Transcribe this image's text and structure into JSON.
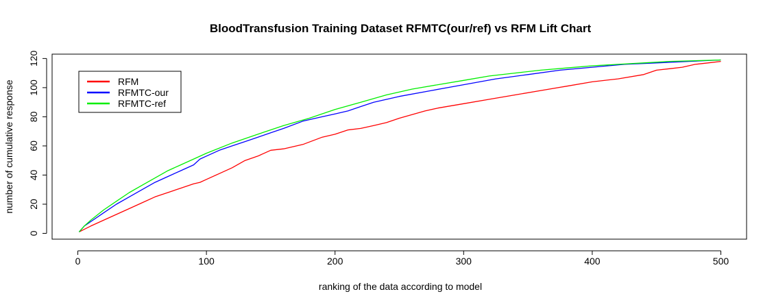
{
  "chart_data": {
    "type": "line",
    "title": "BloodTransfusion Training Dataset RFMTC(our/ref) vs RFM Lift Chart",
    "xlabel": "ranking of the data according to model",
    "ylabel": "number of cumulative response",
    "xlim": [
      -20,
      520
    ],
    "ylim": [
      -4,
      123
    ],
    "xticks": [
      0,
      100,
      200,
      300,
      400,
      500
    ],
    "yticks": [
      0,
      20,
      40,
      60,
      80,
      100,
      120
    ],
    "grid": false,
    "legend": "top-left",
    "series": [
      {
        "name": "RFM",
        "color": "#ff0000",
        "x": [
          1,
          10,
          20,
          30,
          40,
          50,
          60,
          70,
          80,
          90,
          95,
          100,
          110,
          120,
          130,
          140,
          150,
          160,
          175,
          190,
          200,
          210,
          220,
          230,
          240,
          250,
          270,
          280,
          300,
          320,
          340,
          360,
          380,
          400,
          420,
          440,
          450,
          460,
          470,
          480,
          490,
          500
        ],
        "y": [
          1,
          5,
          9,
          13,
          17,
          21,
          25,
          28,
          31,
          34,
          35,
          37,
          41,
          45,
          50,
          53,
          57,
          58,
          61,
          66,
          68,
          71,
          72,
          74,
          76,
          79,
          84,
          86,
          89,
          92,
          95,
          98,
          101,
          104,
          106,
          109,
          112,
          113,
          114,
          116,
          117,
          118
        ]
      },
      {
        "name": "RFMTC-our",
        "color": "#0000ff",
        "x": [
          1,
          5,
          10,
          20,
          30,
          40,
          50,
          60,
          70,
          80,
          90,
          95,
          100,
          110,
          120,
          130,
          140,
          150,
          160,
          175,
          190,
          200,
          210,
          220,
          230,
          250,
          275,
          300,
          325,
          350,
          375,
          400,
          425,
          450,
          475,
          500
        ],
        "y": [
          1,
          5,
          8,
          14,
          20,
          25,
          30,
          35,
          39,
          43,
          47,
          51,
          53,
          57,
          60,
          63,
          66,
          69,
          72,
          77,
          80,
          82,
          84,
          87,
          90,
          94,
          98,
          102,
          106,
          109,
          112,
          114,
          116,
          117,
          118,
          119
        ]
      },
      {
        "name": "RFMTC-ref",
        "color": "#00ee00",
        "x": [
          1,
          5,
          10,
          20,
          30,
          40,
          50,
          60,
          70,
          80,
          90,
          100,
          120,
          140,
          160,
          180,
          200,
          220,
          240,
          260,
          280,
          300,
          320,
          340,
          360,
          380,
          400,
          420,
          440,
          460,
          480,
          500
        ],
        "y": [
          1,
          5,
          9,
          16,
          22,
          28,
          33,
          38,
          43,
          47,
          51,
          55,
          62,
          68,
          74,
          79,
          85,
          90,
          95,
          99,
          102,
          105,
          108,
          110,
          112,
          113.5,
          115,
          116,
          117,
          118,
          118.5,
          119
        ]
      }
    ]
  }
}
